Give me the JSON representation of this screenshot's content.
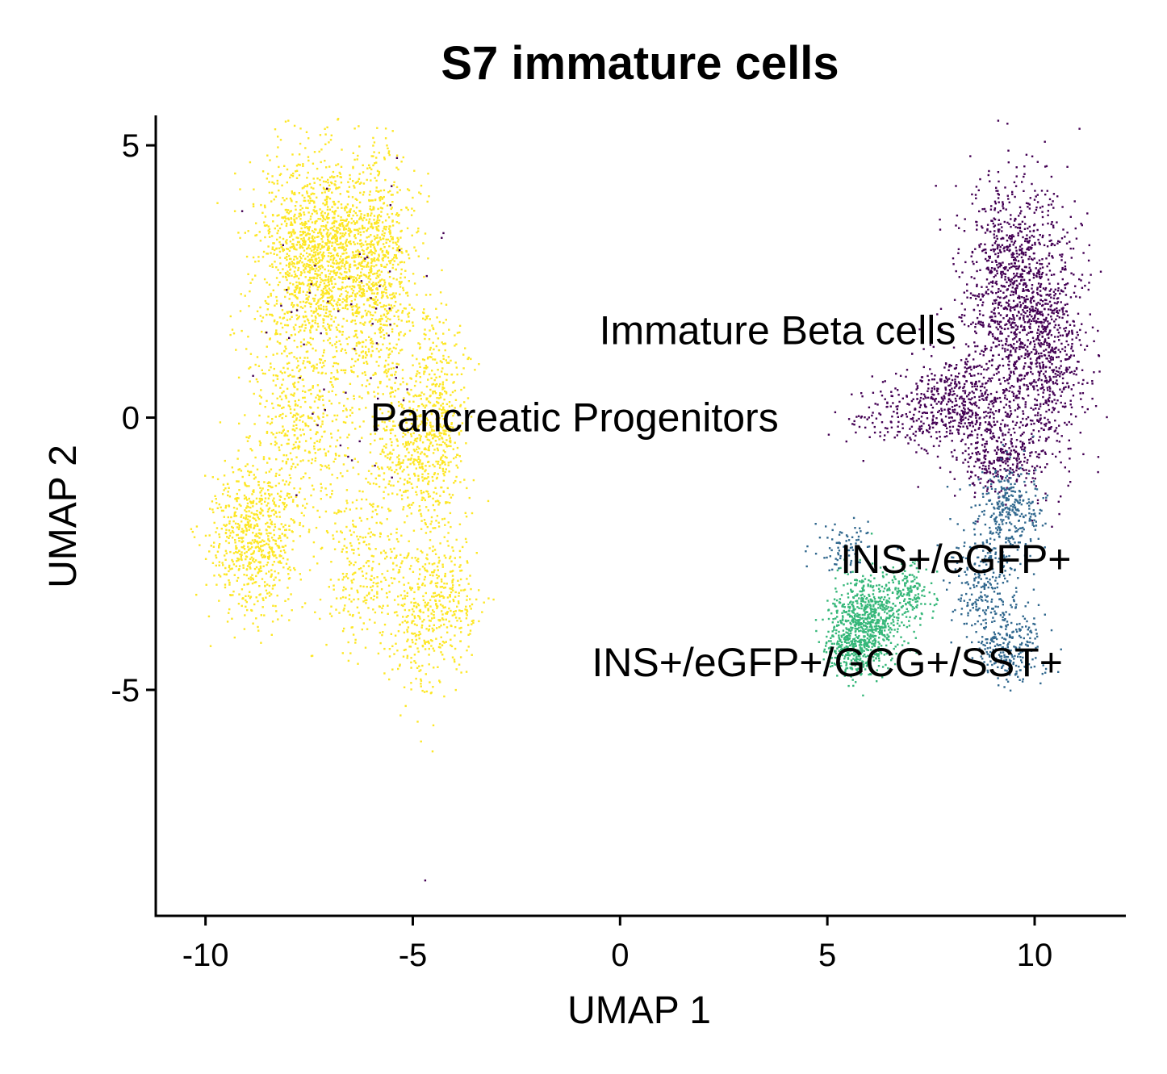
{
  "chart_data": {
    "type": "scatter",
    "title": "S7 immature cells",
    "xlabel": "UMAP 1",
    "ylabel": "UMAP 2",
    "xlim": [
      -11.2,
      12.2
    ],
    "ylim": [
      -9.15,
      5.55
    ],
    "xticks": [
      -10,
      -5,
      0,
      5,
      10
    ],
    "yticks": [
      -5,
      0,
      5
    ],
    "xtick_labels": [
      "-10",
      "-5",
      "0",
      "5",
      "10"
    ],
    "ytick_labels": [
      "-5",
      "0",
      "5"
    ],
    "legend": "none",
    "grid": false,
    "clusters": [
      {
        "label": "Pancreatic Progenitors",
        "label_x": -1.1,
        "label_y": 0.0,
        "color": "#FDE725",
        "regions": [
          {
            "x": -7.2,
            "y": 3.0,
            "sx": 1.0,
            "sy": 1.1,
            "n": 1500
          },
          {
            "x": -5.8,
            "y": 2.5,
            "sx": 0.6,
            "sy": 1.5,
            "n": 700
          },
          {
            "x": -4.4,
            "y": -0.2,
            "sx": 0.45,
            "sy": 1.3,
            "n": 500
          },
          {
            "x": -7.6,
            "y": 0.2,
            "sx": 0.8,
            "sy": 1.1,
            "n": 500
          },
          {
            "x": -8.8,
            "y": -2.2,
            "sx": 0.7,
            "sy": 0.9,
            "n": 700
          },
          {
            "x": -6.2,
            "y": -2.8,
            "sx": 0.7,
            "sy": 1.0,
            "n": 300
          },
          {
            "x": -4.8,
            "y": -3.6,
            "sx": 0.5,
            "sy": 1.0,
            "n": 300
          },
          {
            "x": -4.0,
            "y": -3.4,
            "sx": 0.35,
            "sy": 0.6,
            "n": 150
          },
          {
            "x": -5.2,
            "y": -0.6,
            "sx": 0.5,
            "sy": 0.8,
            "n": 250
          }
        ]
      },
      {
        "label": "Immature Beta cells",
        "label_x": 3.8,
        "label_y": 1.6,
        "color": "#440154",
        "regions": [
          {
            "x": 9.6,
            "y": 2.2,
            "sx": 0.8,
            "sy": 1.4,
            "n": 1200
          },
          {
            "x": 10.3,
            "y": 1.0,
            "sx": 0.6,
            "sy": 1.3,
            "n": 500
          },
          {
            "x": 8.3,
            "y": 0.3,
            "sx": 0.9,
            "sy": 0.6,
            "n": 500
          },
          {
            "x": 6.8,
            "y": 0.0,
            "sx": 0.9,
            "sy": 0.4,
            "n": 150
          },
          {
            "x": 9.2,
            "y": -0.8,
            "sx": 0.6,
            "sy": 0.4,
            "n": 250
          },
          {
            "x": -6.5,
            "y": 1.5,
            "sx": 1.5,
            "sy": 1.8,
            "n": 60
          }
        ]
      },
      {
        "label": "INS+/eGFP+",
        "label_x": 8.1,
        "label_y": -2.6,
        "color": "#31688E",
        "regions": [
          {
            "x": 9.4,
            "y": -1.7,
            "sx": 0.5,
            "sy": 0.5,
            "n": 300
          },
          {
            "x": 8.8,
            "y": -3.0,
            "sx": 0.5,
            "sy": 0.6,
            "n": 250
          },
          {
            "x": 9.4,
            "y": -4.2,
            "sx": 0.5,
            "sy": 0.4,
            "n": 250
          },
          {
            "x": 5.4,
            "y": -2.4,
            "sx": 0.4,
            "sy": 0.3,
            "n": 80
          }
        ]
      },
      {
        "label": "INS+/eGFP+/GCG+/SST+",
        "label_x": 5.0,
        "label_y": -4.5,
        "color": "#35B779",
        "regions": [
          {
            "x": 6.0,
            "y": -3.7,
            "sx": 0.6,
            "sy": 0.5,
            "n": 650
          },
          {
            "x": 5.6,
            "y": -4.3,
            "sx": 0.4,
            "sy": 0.35,
            "n": 250
          },
          {
            "x": 7.0,
            "y": -3.2,
            "sx": 0.4,
            "sy": 0.35,
            "n": 150
          }
        ]
      }
    ],
    "outliers": [
      {
        "x": -4.7,
        "y": -8.5,
        "color": "#440154"
      }
    ]
  }
}
